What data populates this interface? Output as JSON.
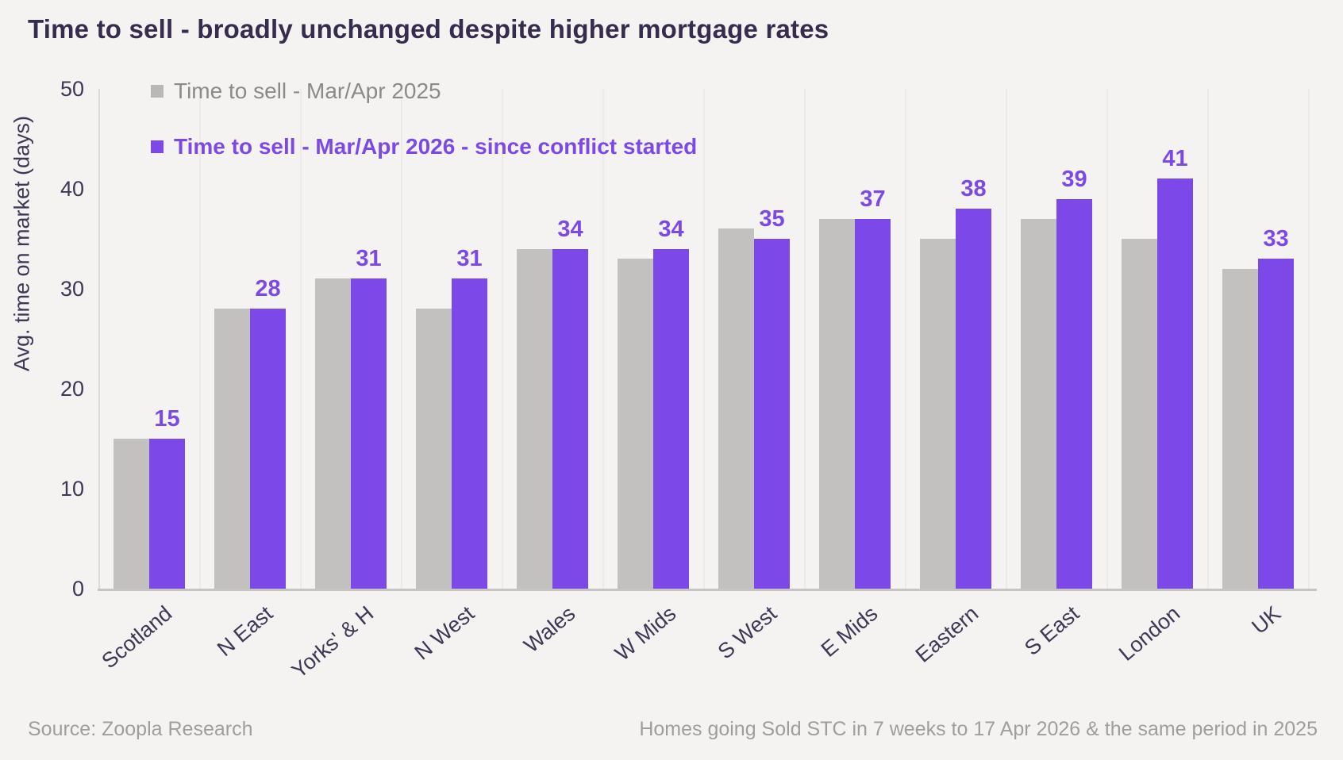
{
  "page": {
    "title": "Time to sell - broadly unchanged despite higher mortgage rates"
  },
  "chart_data": {
    "type": "bar",
    "title": "Time to sell - broadly unchanged despite higher mortgage rates",
    "categories": [
      "Scotland",
      "N East",
      "Yorks' & H",
      "N West",
      "Wales",
      "W Mids",
      "S West",
      "E Mids",
      "Eastern",
      "S East",
      "London",
      "UK"
    ],
    "series": [
      {
        "name": "Time to sell - Mar/Apr 2025",
        "color": "#c2c1bf",
        "values": [
          15,
          28,
          31,
          28,
          34,
          33,
          36,
          37,
          35,
          37,
          35,
          32
        ],
        "data_labels_shown": false
      },
      {
        "name": "Time to sell - Mar/Apr 2026 - since conflict started",
        "color": "#7c49e8",
        "values": [
          15,
          28,
          31,
          31,
          34,
          34,
          35,
          37,
          38,
          39,
          41,
          33
        ],
        "data_labels_shown": true
      }
    ],
    "xlabel": "",
    "ylabel": "Avg. time on market (days)",
    "ylim": [
      0,
      50
    ],
    "yticks": [
      0,
      10,
      20,
      30,
      40,
      50
    ],
    "grid": "faint vertical category separators",
    "legend_position": "top-left inside plot area"
  },
  "footer": {
    "source": "Source: Zoopla Research",
    "note": "Homes going Sold STC in 7 weeks to 17 Apr 2026 & the same period in 2025"
  },
  "colors": {
    "background": "#f5f3f1",
    "bar_2025": "#c2c1bf",
    "bar_2026": "#7c49e8",
    "title_text": "#362c4e",
    "axis_text": "#3f3756",
    "legend_2025_text": "#8b8a88",
    "footer_text": "#a09e9c",
    "gridline": "#eceae7",
    "baseline": "#c7c5c2"
  }
}
